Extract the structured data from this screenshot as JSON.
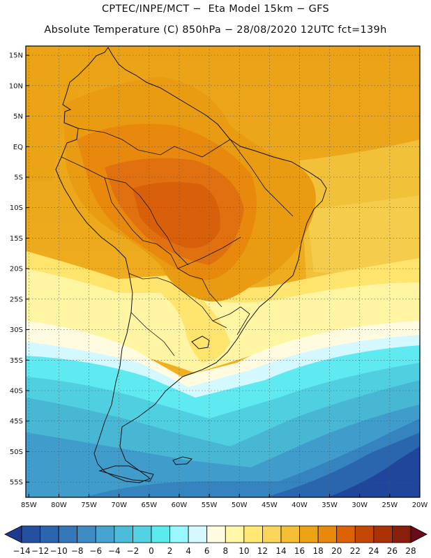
{
  "title": {
    "line1": "CPTEC/INPE/MCT −  Eta Model 15km − GFS",
    "line2": "Absolute Temperature (C) 850hPa − 28/08/2020 12UTC fct=139h"
  },
  "map": {
    "region": "South America",
    "variable": "Absolute Temperature at 850hPa",
    "units": "C",
    "lat_labels": [
      "15N",
      "10N",
      "5N",
      "EQ",
      "5S",
      "10S",
      "15S",
      "20S",
      "25S",
      "30S",
      "35S",
      "40S",
      "45S",
      "50S",
      "55S"
    ],
    "lat_values": [
      15,
      10,
      5,
      0,
      -5,
      -10,
      -15,
      -20,
      -25,
      -30,
      -35,
      -40,
      -45,
      -50,
      -55
    ],
    "lon_labels": [
      "85W",
      "80W",
      "75W",
      "70W",
      "65W",
      "60W",
      "55W",
      "50W",
      "45W",
      "40W",
      "35W",
      "30W",
      "25W",
      "20W"
    ],
    "lon_values": [
      -85,
      -80,
      -75,
      -70,
      -65,
      -60,
      -55,
      -50,
      -45,
      -40,
      -35,
      -30,
      -25,
      -20
    ],
    "extent": {
      "lon_min": -85.5,
      "lon_max": -20,
      "lat_min": -57.5,
      "lat_max": 16.5
    }
  },
  "colorbar": {
    "labels": [
      "-14",
      "-12",
      "-10",
      "-8",
      "-6",
      "-4",
      "-2",
      "0",
      "2",
      "4",
      "6",
      "8",
      "10",
      "12",
      "14",
      "16",
      "18",
      "20",
      "22",
      "24",
      "26",
      "28"
    ],
    "levels": [
      -14,
      -12,
      -10,
      -8,
      -6,
      -4,
      -2,
      0,
      2,
      4,
      6,
      8,
      10,
      12,
      14,
      16,
      18,
      20,
      22,
      24,
      26,
      28
    ],
    "colors": [
      "#1e3a8f",
      "#24509f",
      "#2c64ad",
      "#3677b9",
      "#3f8cc4",
      "#47a3cf",
      "#4cbcd8",
      "#52d2e2",
      "#5bebee",
      "#99f7ff",
      "#d6f8ff",
      "#fffbe1",
      "#fff6a8",
      "#ffe873",
      "#fbd55a",
      "#f4be36",
      "#eda316",
      "#e8890d",
      "#dd6206",
      "#c44706",
      "#a93306",
      "#891e0a",
      "#690a1a"
    ]
  },
  "colors": {
    "border": "#111111",
    "grid": "#555555",
    "ocean_north": "#eaa418"
  }
}
